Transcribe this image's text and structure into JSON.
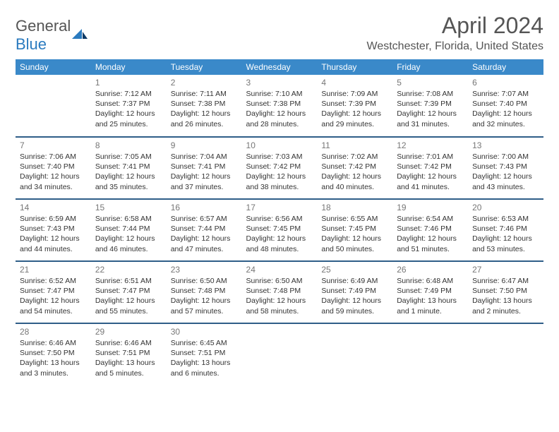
{
  "brand": {
    "part1": "General",
    "part2": "Blue"
  },
  "month_title": "April 2024",
  "location": "Westchester, Florida, United States",
  "colors": {
    "header_bg": "#3a89c9",
    "header_text": "#ffffff",
    "row_divider": "#2f5e88",
    "body_text": "#333333",
    "muted_text": "#777777",
    "brand_grey": "#555555",
    "brand_blue": "#2b7bbf"
  },
  "day_headers": [
    "Sunday",
    "Monday",
    "Tuesday",
    "Wednesday",
    "Thursday",
    "Friday",
    "Saturday"
  ],
  "start_offset": 1,
  "days": [
    {
      "n": 1,
      "sunrise": "7:12 AM",
      "sunset": "7:37 PM",
      "dl1": "Daylight: 12 hours",
      "dl2": "and 25 minutes."
    },
    {
      "n": 2,
      "sunrise": "7:11 AM",
      "sunset": "7:38 PM",
      "dl1": "Daylight: 12 hours",
      "dl2": "and 26 minutes."
    },
    {
      "n": 3,
      "sunrise": "7:10 AM",
      "sunset": "7:38 PM",
      "dl1": "Daylight: 12 hours",
      "dl2": "and 28 minutes."
    },
    {
      "n": 4,
      "sunrise": "7:09 AM",
      "sunset": "7:39 PM",
      "dl1": "Daylight: 12 hours",
      "dl2": "and 29 minutes."
    },
    {
      "n": 5,
      "sunrise": "7:08 AM",
      "sunset": "7:39 PM",
      "dl1": "Daylight: 12 hours",
      "dl2": "and 31 minutes."
    },
    {
      "n": 6,
      "sunrise": "7:07 AM",
      "sunset": "7:40 PM",
      "dl1": "Daylight: 12 hours",
      "dl2": "and 32 minutes."
    },
    {
      "n": 7,
      "sunrise": "7:06 AM",
      "sunset": "7:40 PM",
      "dl1": "Daylight: 12 hours",
      "dl2": "and 34 minutes."
    },
    {
      "n": 8,
      "sunrise": "7:05 AM",
      "sunset": "7:41 PM",
      "dl1": "Daylight: 12 hours",
      "dl2": "and 35 minutes."
    },
    {
      "n": 9,
      "sunrise": "7:04 AM",
      "sunset": "7:41 PM",
      "dl1": "Daylight: 12 hours",
      "dl2": "and 37 minutes."
    },
    {
      "n": 10,
      "sunrise": "7:03 AM",
      "sunset": "7:42 PM",
      "dl1": "Daylight: 12 hours",
      "dl2": "and 38 minutes."
    },
    {
      "n": 11,
      "sunrise": "7:02 AM",
      "sunset": "7:42 PM",
      "dl1": "Daylight: 12 hours",
      "dl2": "and 40 minutes."
    },
    {
      "n": 12,
      "sunrise": "7:01 AM",
      "sunset": "7:42 PM",
      "dl1": "Daylight: 12 hours",
      "dl2": "and 41 minutes."
    },
    {
      "n": 13,
      "sunrise": "7:00 AM",
      "sunset": "7:43 PM",
      "dl1": "Daylight: 12 hours",
      "dl2": "and 43 minutes."
    },
    {
      "n": 14,
      "sunrise": "6:59 AM",
      "sunset": "7:43 PM",
      "dl1": "Daylight: 12 hours",
      "dl2": "and 44 minutes."
    },
    {
      "n": 15,
      "sunrise": "6:58 AM",
      "sunset": "7:44 PM",
      "dl1": "Daylight: 12 hours",
      "dl2": "and 46 minutes."
    },
    {
      "n": 16,
      "sunrise": "6:57 AM",
      "sunset": "7:44 PM",
      "dl1": "Daylight: 12 hours",
      "dl2": "and 47 minutes."
    },
    {
      "n": 17,
      "sunrise": "6:56 AM",
      "sunset": "7:45 PM",
      "dl1": "Daylight: 12 hours",
      "dl2": "and 48 minutes."
    },
    {
      "n": 18,
      "sunrise": "6:55 AM",
      "sunset": "7:45 PM",
      "dl1": "Daylight: 12 hours",
      "dl2": "and 50 minutes."
    },
    {
      "n": 19,
      "sunrise": "6:54 AM",
      "sunset": "7:46 PM",
      "dl1": "Daylight: 12 hours",
      "dl2": "and 51 minutes."
    },
    {
      "n": 20,
      "sunrise": "6:53 AM",
      "sunset": "7:46 PM",
      "dl1": "Daylight: 12 hours",
      "dl2": "and 53 minutes."
    },
    {
      "n": 21,
      "sunrise": "6:52 AM",
      "sunset": "7:47 PM",
      "dl1": "Daylight: 12 hours",
      "dl2": "and 54 minutes."
    },
    {
      "n": 22,
      "sunrise": "6:51 AM",
      "sunset": "7:47 PM",
      "dl1": "Daylight: 12 hours",
      "dl2": "and 55 minutes."
    },
    {
      "n": 23,
      "sunrise": "6:50 AM",
      "sunset": "7:48 PM",
      "dl1": "Daylight: 12 hours",
      "dl2": "and 57 minutes."
    },
    {
      "n": 24,
      "sunrise": "6:50 AM",
      "sunset": "7:48 PM",
      "dl1": "Daylight: 12 hours",
      "dl2": "and 58 minutes."
    },
    {
      "n": 25,
      "sunrise": "6:49 AM",
      "sunset": "7:49 PM",
      "dl1": "Daylight: 12 hours",
      "dl2": "and 59 minutes."
    },
    {
      "n": 26,
      "sunrise": "6:48 AM",
      "sunset": "7:49 PM",
      "dl1": "Daylight: 13 hours",
      "dl2": "and 1 minute."
    },
    {
      "n": 27,
      "sunrise": "6:47 AM",
      "sunset": "7:50 PM",
      "dl1": "Daylight: 13 hours",
      "dl2": "and 2 minutes."
    },
    {
      "n": 28,
      "sunrise": "6:46 AM",
      "sunset": "7:50 PM",
      "dl1": "Daylight: 13 hours",
      "dl2": "and 3 minutes."
    },
    {
      "n": 29,
      "sunrise": "6:46 AM",
      "sunset": "7:51 PM",
      "dl1": "Daylight: 13 hours",
      "dl2": "and 5 minutes."
    },
    {
      "n": 30,
      "sunrise": "6:45 AM",
      "sunset": "7:51 PM",
      "dl1": "Daylight: 13 hours",
      "dl2": "and 6 minutes."
    }
  ],
  "labels": {
    "sunrise_prefix": "Sunrise: ",
    "sunset_prefix": "Sunset: "
  }
}
